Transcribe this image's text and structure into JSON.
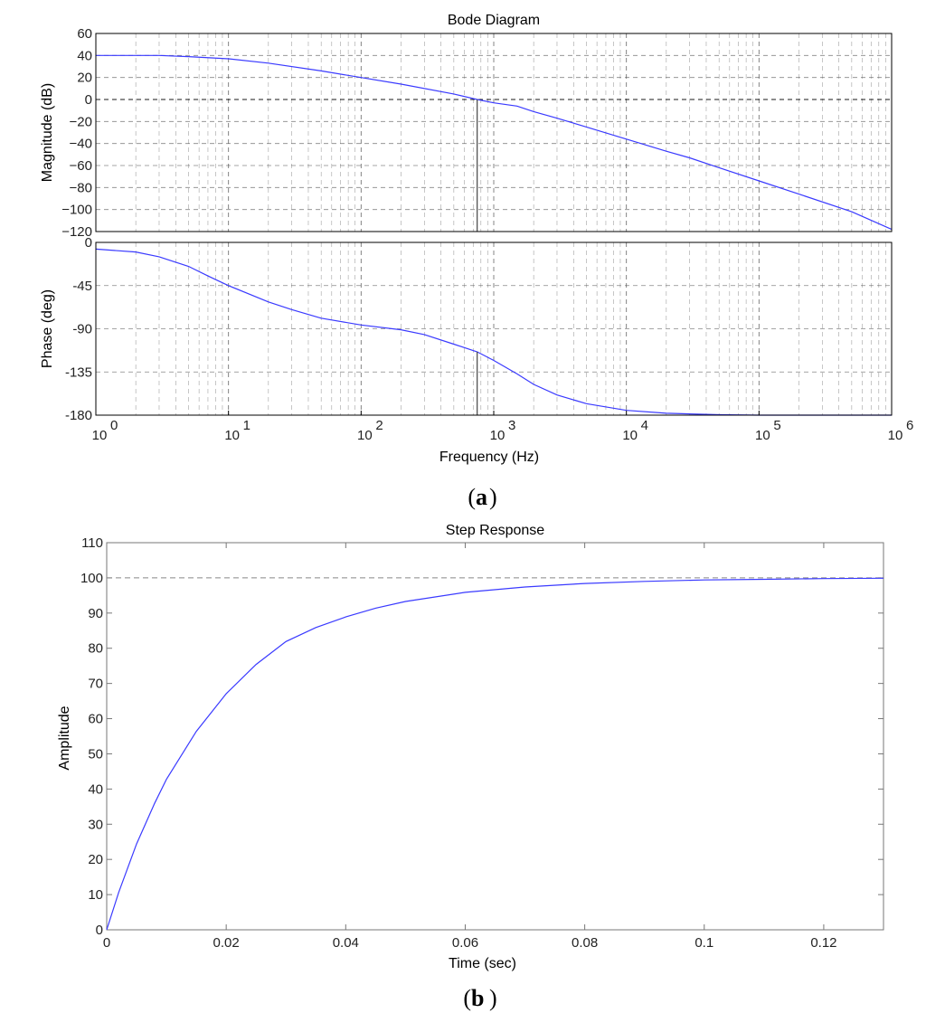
{
  "colors": {
    "curve": "#3a3aff",
    "grid": "#555555",
    "axis": "#000000",
    "reference": "#333333",
    "crossover": "#444444"
  },
  "panels": {
    "a": "a",
    "b": "b"
  },
  "chart_data": [
    {
      "type": "line",
      "title": "Bode Diagram",
      "subplot": "magnitude",
      "xlabel": "Frequency  (Hz)",
      "ylabel": "Magnitude (dB)",
      "xscale": "log",
      "xlim": [
        1,
        1000000
      ],
      "ylim": [
        -120,
        60
      ],
      "yticks": [
        "60",
        "40",
        "20",
        "0",
        "−20",
        "−40",
        "−60",
        "−80",
        "−100",
        "−120"
      ],
      "grid": true,
      "series": [
        {
          "x": [
            1,
            2,
            3,
            5,
            10,
            20,
            50,
            100,
            200,
            500,
            750,
            1000,
            1500,
            2000,
            3000,
            5000,
            10000,
            20000,
            30000,
            50000,
            100000,
            200000,
            500000,
            1000000
          ],
          "y": [
            40,
            40,
            40,
            39,
            37,
            33,
            26,
            20,
            14,
            5,
            0,
            -3,
            -6,
            -11,
            -17,
            -25,
            -36,
            -47,
            -53,
            -62,
            -74,
            -86,
            -102,
            -118
          ]
        }
      ],
      "crossover_frequency": 750
    },
    {
      "type": "line",
      "subplot": "phase",
      "xlabel": "Frequency  (Hz)",
      "ylabel": "Phase (deg)",
      "xscale": "log",
      "xlim": [
        1,
        1000000
      ],
      "ylim": [
        -180,
        0
      ],
      "yticks": [
        "0",
        "-45",
        "-90",
        "-135",
        "-180"
      ],
      "xtick_bases": [
        "10",
        "10",
        "10",
        "10",
        "10",
        "10",
        "10"
      ],
      "xtick_exponents": [
        "0",
        "1",
        "2",
        "3",
        "4",
        "5",
        "6"
      ],
      "grid": true,
      "series": [
        {
          "x": [
            1,
            2,
            3,
            5,
            7,
            10,
            20,
            30,
            50,
            100,
            200,
            300,
            500,
            750,
            1000,
            1500,
            2000,
            3000,
            5000,
            10000,
            20000,
            50000,
            100000,
            1000000
          ],
          "y": [
            -7,
            -10,
            -15,
            -25,
            -35,
            -45,
            -62,
            -70,
            -79,
            -86,
            -91,
            -96,
            -106,
            -114,
            -123,
            -137,
            -148,
            -159,
            -168,
            -175,
            -178,
            -179.5,
            -180,
            -180
          ]
        }
      ],
      "crossover_frequency": 750
    },
    {
      "type": "line",
      "title": "Step Response",
      "xlabel": "Time (sec)",
      "ylabel": "Amplitude",
      "xlim": [
        0,
        0.13
      ],
      "ylim": [
        0,
        110
      ],
      "xticks": [
        "0",
        "0.02",
        "0.04",
        "0.06",
        "0.08",
        "0.1",
        "0.12"
      ],
      "yticks": [
        "0",
        "10",
        "20",
        "30",
        "40",
        "50",
        "60",
        "70",
        "80",
        "90",
        "100",
        "110"
      ],
      "grid": false,
      "reference_line": 100,
      "series": [
        {
          "x": [
            0,
            0.002,
            0.005,
            0.008,
            0.01,
            0.015,
            0.02,
            0.025,
            0.03,
            0.035,
            0.04,
            0.045,
            0.05,
            0.06,
            0.07,
            0.08,
            0.09,
            0.1,
            0.11,
            0.12,
            0.13
          ],
          "y": [
            0,
            10.6,
            24.4,
            35.9,
            42.8,
            56.4,
            67.1,
            75.4,
            81.9,
            85.9,
            88.9,
            91.4,
            93.3,
            95.9,
            97.4,
            98.4,
            99.0,
            99.4,
            99.6,
            99.8,
            99.9
          ]
        }
      ]
    }
  ]
}
